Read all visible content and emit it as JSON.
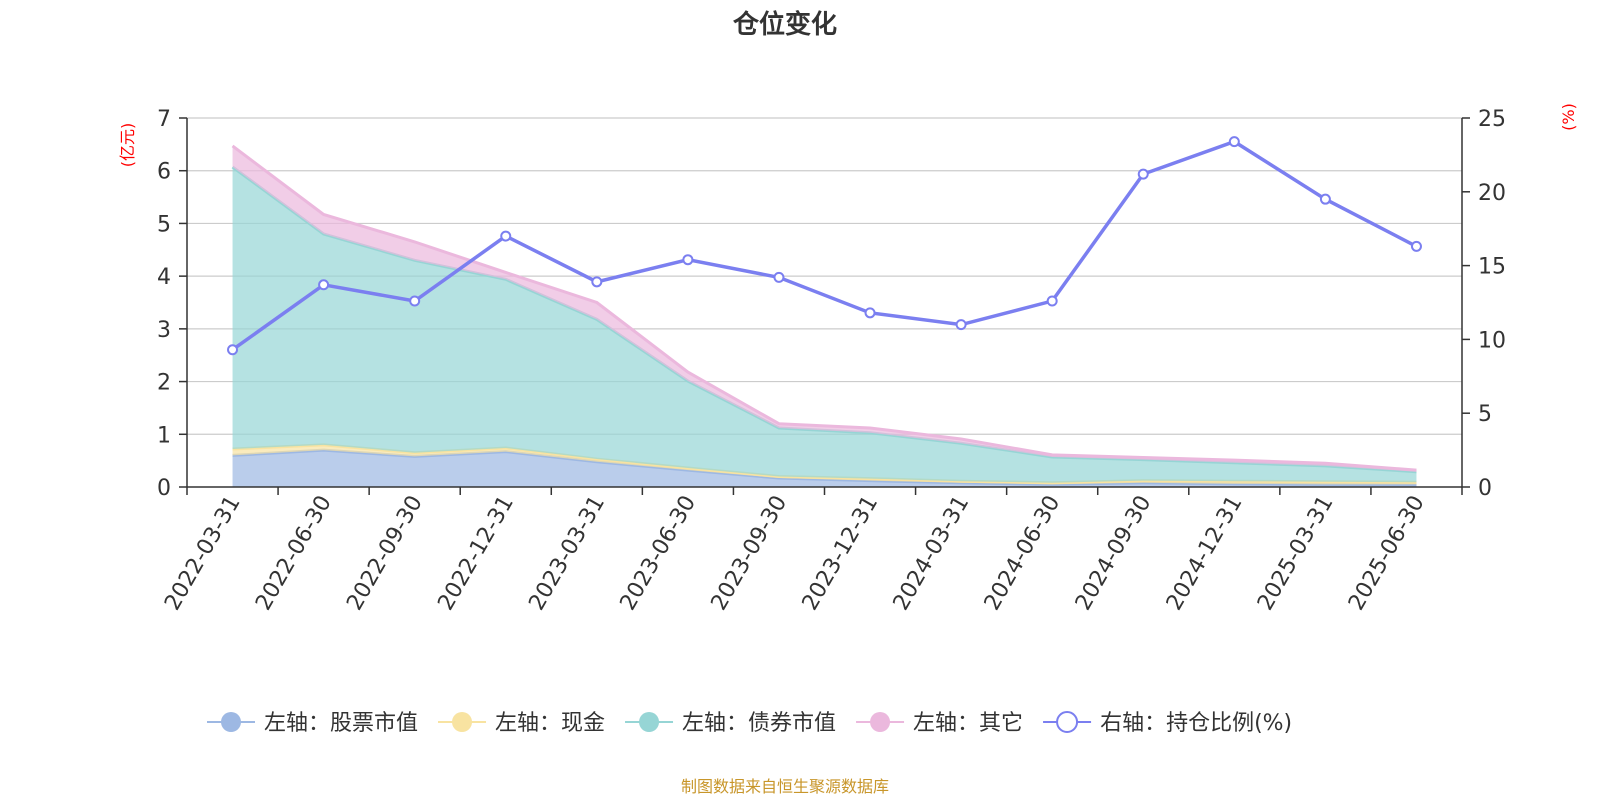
{
  "chart_data": {
    "type": "area",
    "title": "仓位变化",
    "left_axis": {
      "unit": "(亿元)",
      "ylim": [
        0,
        7
      ],
      "ticks": [
        0,
        1,
        2,
        3,
        4,
        5,
        6,
        7
      ]
    },
    "right_axis": {
      "unit": "(%)",
      "ylim": [
        0,
        25
      ],
      "ticks": [
        0,
        5,
        10,
        15,
        20,
        25
      ]
    },
    "categories": [
      "2022-03-31",
      "2022-06-30",
      "2022-09-30",
      "2022-12-31",
      "2023-03-31",
      "2023-06-30",
      "2023-09-30",
      "2023-12-31",
      "2024-03-31",
      "2024-06-30",
      "2024-09-30",
      "2024-12-31",
      "2025-03-31",
      "2025-06-30"
    ],
    "stacked_series": [
      {
        "name": "左轴：股票市值",
        "color": "#9db8e3",
        "values": [
          0.6,
          0.7,
          0.58,
          0.67,
          0.48,
          0.32,
          0.17,
          0.12,
          0.08,
          0.05,
          0.08,
          0.06,
          0.05,
          0.05
        ]
      },
      {
        "name": "左轴：现金",
        "color": "#f8e3a1",
        "values": [
          0.12,
          0.1,
          0.07,
          0.07,
          0.05,
          0.04,
          0.03,
          0.04,
          0.03,
          0.03,
          0.04,
          0.05,
          0.05,
          0.04
        ]
      },
      {
        "name": "左轴：债券市值",
        "color": "#96d5d5",
        "values": [
          5.35,
          4.0,
          3.65,
          3.2,
          2.65,
          1.65,
          0.92,
          0.87,
          0.72,
          0.49,
          0.4,
          0.35,
          0.3,
          0.2
        ]
      },
      {
        "name": "左轴：其它",
        "color": "#ebb8dd",
        "values": [
          0.4,
          0.37,
          0.35,
          0.13,
          0.32,
          0.17,
          0.08,
          0.09,
          0.08,
          0.04,
          0.04,
          0.05,
          0.05,
          0.03
        ]
      }
    ],
    "line_series": {
      "name": "右轴：持仓比例(%)",
      "color": "#7b7ff0",
      "axis": "right",
      "values": [
        9.3,
        13.7,
        12.6,
        17.0,
        13.9,
        15.4,
        14.2,
        11.8,
        11.0,
        12.6,
        21.2,
        23.4,
        19.5,
        16.3
      ]
    },
    "grid": true,
    "legend": "bottom",
    "source": "制图数据来自恒生聚源数据库"
  }
}
